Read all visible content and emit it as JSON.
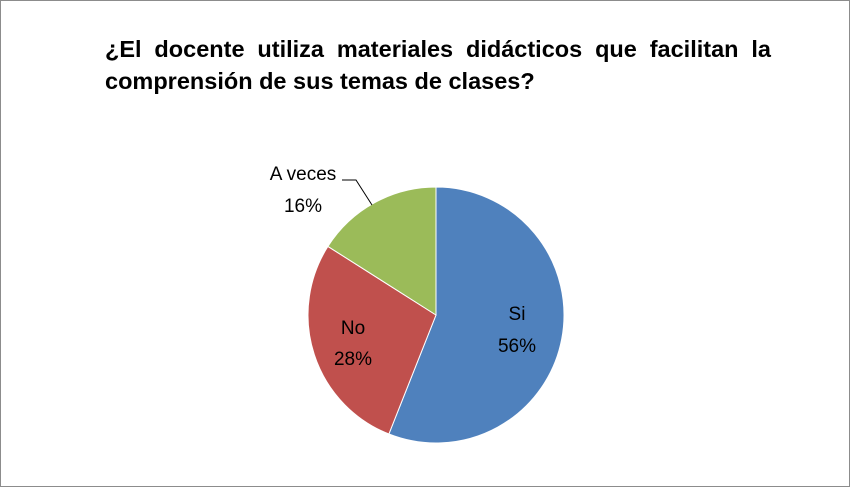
{
  "chart_data": {
    "type": "pie",
    "title": "¿El docente utiliza materiales didácticos que facilitan la comprensión de sus temas de clases?",
    "categories": [
      "Si",
      "No",
      "A veces"
    ],
    "values": [
      56,
      28,
      16
    ],
    "value_labels": [
      "56%",
      "28%",
      "16%"
    ],
    "colors": [
      "#4f81bd",
      "#c0504d",
      "#9bbb59"
    ]
  }
}
